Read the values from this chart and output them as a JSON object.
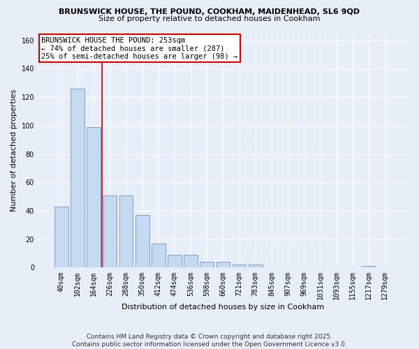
{
  "title_line1": "BRUNSWICK HOUSE, THE POUND, COOKHAM, MAIDENHEAD, SL6 9QD",
  "title_line2": "Size of property relative to detached houses in Cookham",
  "xlabel": "Distribution of detached houses by size in Cookham",
  "ylabel": "Number of detached properties",
  "categories": [
    "40sqm",
    "102sqm",
    "164sqm",
    "226sqm",
    "288sqm",
    "350sqm",
    "412sqm",
    "474sqm",
    "536sqm",
    "598sqm",
    "660sqm",
    "721sqm",
    "783sqm",
    "845sqm",
    "907sqm",
    "969sqm",
    "1031sqm",
    "1093sqm",
    "1155sqm",
    "1217sqm",
    "1279sqm"
  ],
  "values": [
    43,
    126,
    99,
    51,
    51,
    37,
    17,
    9,
    9,
    4,
    4,
    2,
    2,
    0,
    0,
    0,
    0,
    0,
    0,
    1,
    0
  ],
  "bar_color": "#c5d9f1",
  "bar_edge_color": "#7396b8",
  "annotation_box_text": "BRUNSWICK HOUSE THE POUND: 253sqm\n← 74% of detached houses are smaller (287)\n25% of semi-detached houses are larger (98) →",
  "red_line_x": 2.5,
  "ylim": [
    0,
    165
  ],
  "yticks": [
    0,
    20,
    40,
    60,
    80,
    100,
    120,
    140,
    160
  ],
  "footer_line1": "Contains HM Land Registry data © Crown copyright and database right 2025.",
  "footer_line2": "Contains public sector information licensed under the Open Government Licence v3.0.",
  "background_color": "#e8eef8",
  "grid_color": "#ffffff",
  "annotation_box_color": "#ffffff",
  "annotation_box_edge_color": "#cc0000",
  "title_fontsize": 8,
  "subtitle_fontsize": 8,
  "tick_fontsize": 7,
  "xlabel_fontsize": 8,
  "ylabel_fontsize": 8,
  "annotation_fontsize": 7.5,
  "footer_fontsize": 6.5
}
